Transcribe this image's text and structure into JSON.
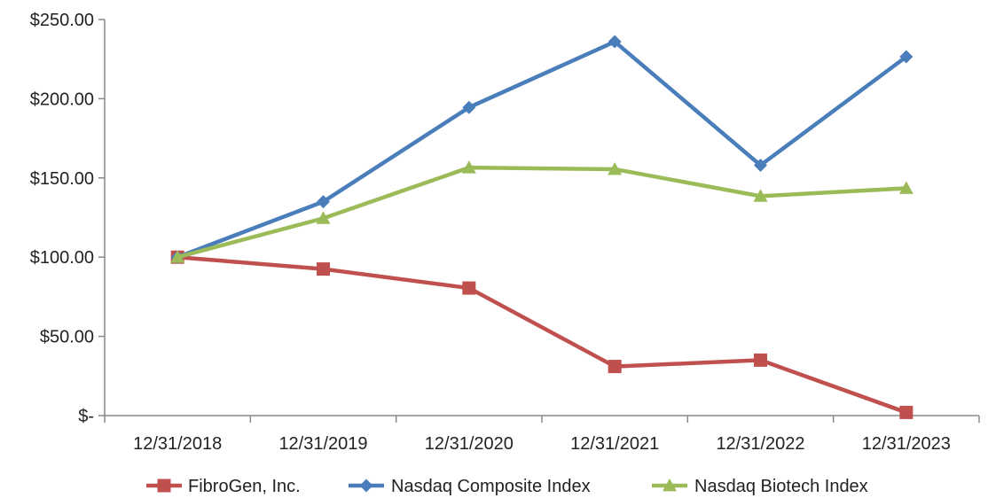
{
  "chart_data": {
    "type": "line",
    "title": "",
    "xlabel": "",
    "ylabel": "",
    "categories": [
      "12/31/2018",
      "12/31/2019",
      "12/31/2020",
      "12/31/2021",
      "12/31/2022",
      "12/31/2023"
    ],
    "y_ticks": [
      0,
      50,
      100,
      150,
      200,
      250
    ],
    "y_tick_labels": [
      "$-",
      "$50.00",
      "$100.00",
      "$150.00",
      "$200.00",
      "$250.00"
    ],
    "ylim": [
      0,
      250
    ],
    "grid": false,
    "legend_position": "bottom",
    "series": [
      {
        "name": "FibroGen, Inc.",
        "color": "#c0504d",
        "marker": "square",
        "values": [
          100,
          92.5,
          80.5,
          31,
          35,
          2
        ]
      },
      {
        "name": "Nasdaq Composite Index",
        "color": "#4a7ebb",
        "marker": "diamond",
        "values": [
          100,
          135,
          194.5,
          236,
          158,
          226.5
        ]
      },
      {
        "name": "Nasdaq Biotech Index",
        "color": "#9bbb59",
        "marker": "triangle",
        "values": [
          100,
          124.5,
          156.5,
          155.5,
          138.5,
          143.5
        ]
      }
    ]
  }
}
